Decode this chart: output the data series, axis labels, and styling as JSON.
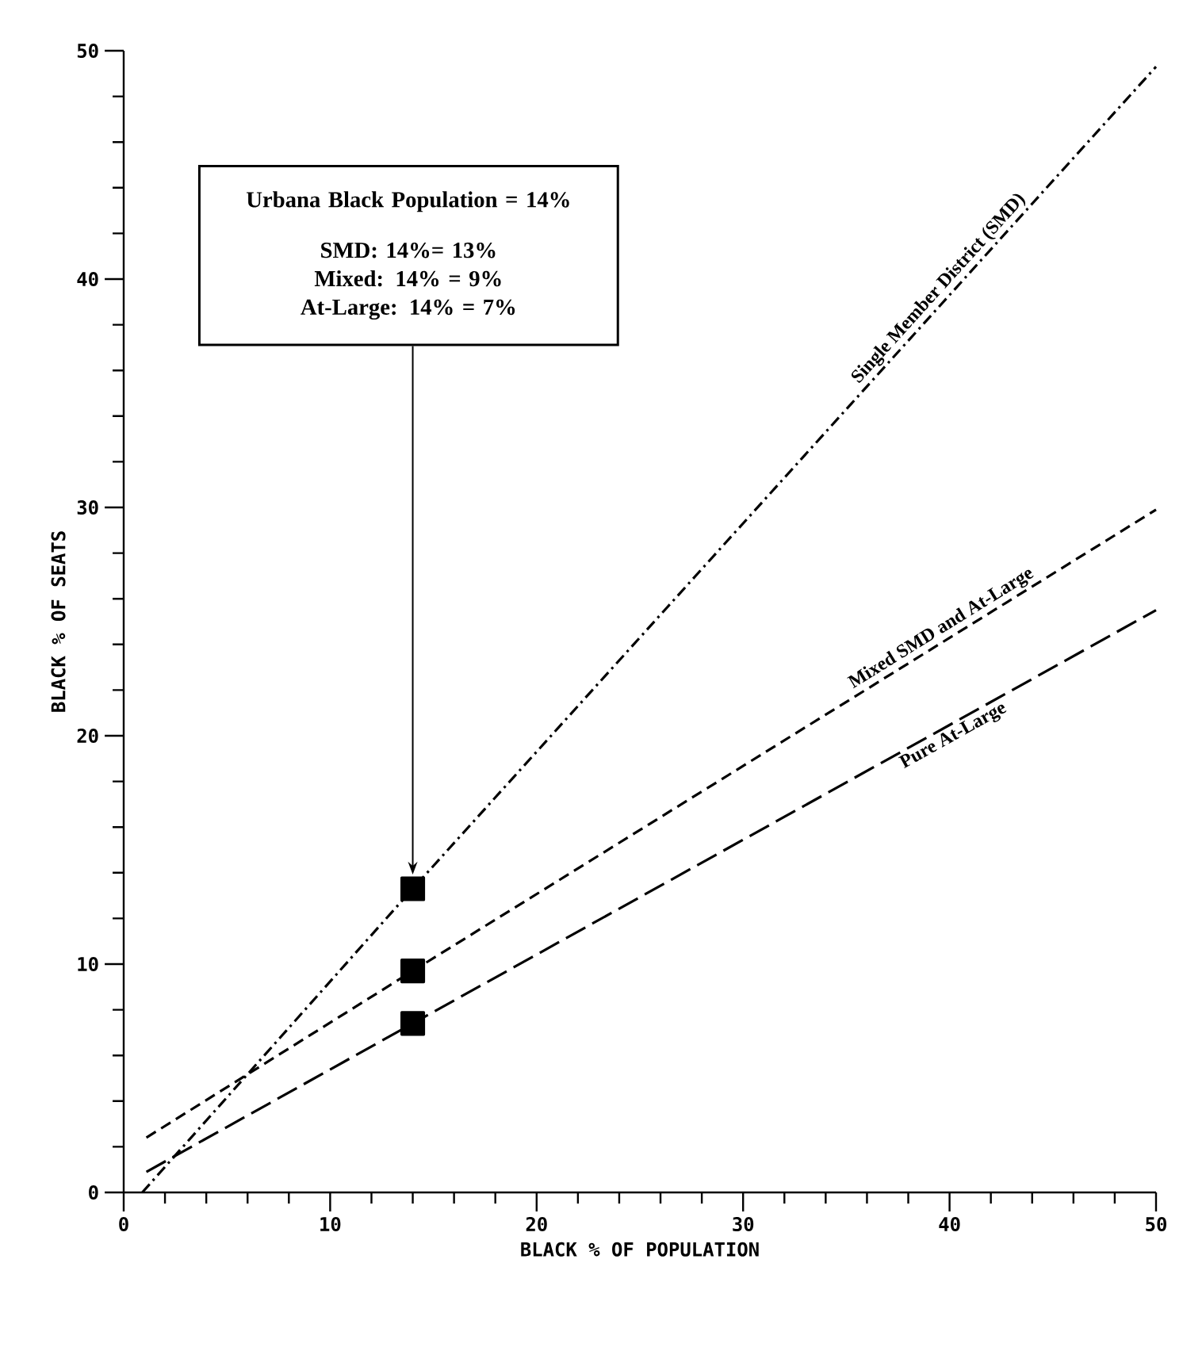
{
  "chart_data": {
    "type": "line",
    "xlabel": "BLACK % OF POPULATION",
    "ylabel": "BLACK % OF SEATS",
    "xlim": [
      0,
      50
    ],
    "ylim": [
      0,
      50
    ],
    "xticks": [
      0,
      10,
      20,
      30,
      40,
      50
    ],
    "yticks": [
      0,
      10,
      20,
      30,
      40,
      50
    ],
    "grid": false,
    "series": [
      {
        "name": "Single Member District (SMD)",
        "color": "#000000",
        "line_style": "dashdot",
        "marker": "none",
        "x": [
          0.9,
          14,
          50
        ],
        "values": [
          0,
          13.3,
          49.3
        ]
      },
      {
        "name": "Mixed SMD and At-Large",
        "color": "#000000",
        "line_style": "dashed",
        "marker": "none",
        "x": [
          1.1,
          14,
          50
        ],
        "values": [
          2.4,
          9.7,
          29.9
        ]
      },
      {
        "name": "Pure At-Large",
        "color": "#000000",
        "line_style": "longdashed",
        "marker": "none",
        "x": [
          1.1,
          14,
          50
        ],
        "values": [
          0.9,
          7.4,
          25.5
        ]
      },
      {
        "type": "scatter",
        "color": "#000000",
        "marker": "square",
        "x": [
          14,
          14,
          14
        ],
        "values": [
          13.3,
          9.7,
          7.4
        ]
      }
    ],
    "annotations": [
      "Urbana Black Population = 14%",
      "SMD: 14%= 13%",
      "Mixed: 14% = 9%",
      "At-Large: 14% = 7%"
    ]
  }
}
